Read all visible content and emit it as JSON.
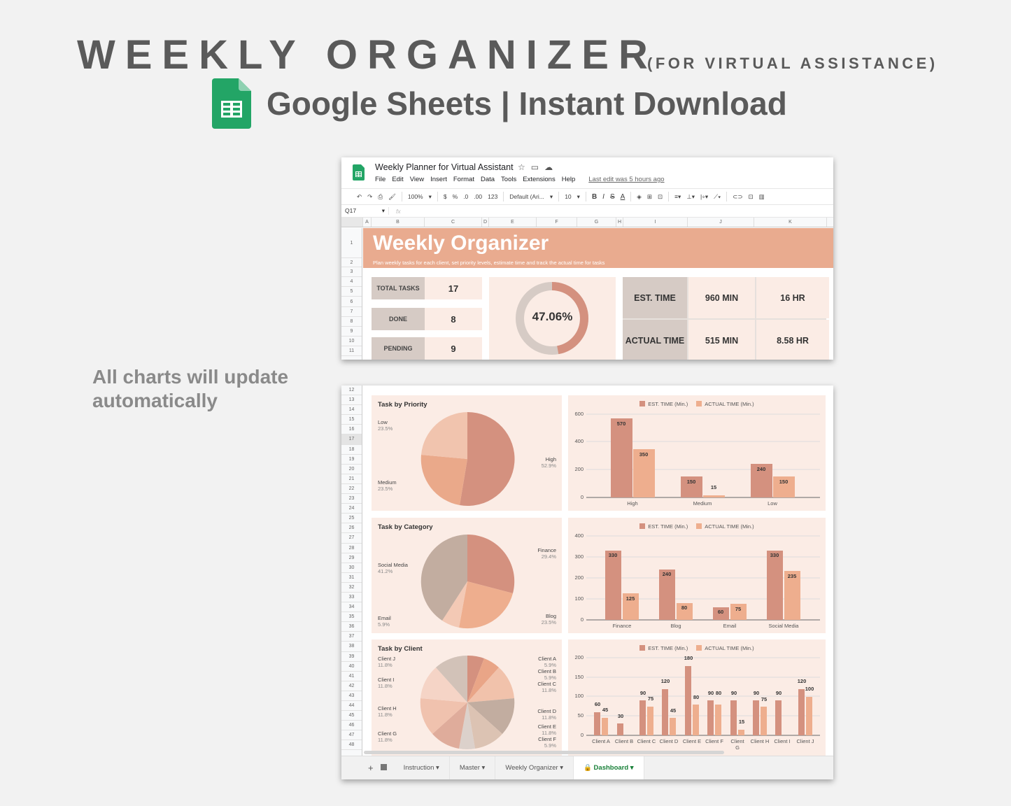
{
  "hero": {
    "title": "WEEKLY ORGANIZER",
    "subtitle": "(FOR VIRTUAL ASSISTANCE)",
    "line2": "Google Sheets | Instant Download",
    "side_note": "All charts will update automatically"
  },
  "window": {
    "doc_title": "Weekly Planner for Virtual Assistant",
    "menu": [
      "File",
      "Edit",
      "View",
      "Insert",
      "Format",
      "Data",
      "Tools",
      "Extensions",
      "Help"
    ],
    "last_edit": "Last edit was 5 hours ago",
    "toolbar": {
      "zoom": "100%",
      "currency": "$",
      "percent": "%",
      "dec_less": ".0",
      "dec_more": ".00",
      "format": "123",
      "font": "Default (Ari...",
      "font_size": "10",
      "bold": "B",
      "italic": "I",
      "strike": "S",
      "text_color": "A"
    },
    "name_box": "Q17",
    "fx": "fx",
    "columns": [
      "A",
      "B",
      "C",
      "D",
      "E",
      "F",
      "G",
      "H",
      "I",
      "J",
      "K"
    ]
  },
  "dashboard": {
    "title": "Weekly Organizer",
    "description": "Plan weekly tasks for each client, set priority levels, estimate time and track the actual time for tasks",
    "kpis": [
      {
        "label": "TOTAL TASKS",
        "value": "17"
      },
      {
        "label": "DONE",
        "value": "8"
      },
      {
        "label": "PENDING",
        "value": "9"
      }
    ],
    "completion": "47.06%",
    "time": {
      "est_label": "EST. TIME",
      "est_min": "960 MIN",
      "est_hr": "16 HR",
      "actual_label": "ACTUAL TIME",
      "actual_min": "515 MIN",
      "actual_hr": "8.58 HR"
    }
  },
  "legend": {
    "est": "EST. TIME (Min.)",
    "actual": "ACTUAL TIME (Min.)"
  },
  "colors": {
    "est": "#d4917f",
    "actual": "#eeae8e",
    "banner": "#e9ab8f",
    "card": "#fbece5",
    "label_bg": "#d6cbc5"
  },
  "chart_data": [
    {
      "type": "pie",
      "title": "Task by Priority",
      "categories": [
        "High",
        "Medium",
        "Low"
      ],
      "values": [
        52.9,
        23.5,
        23.5
      ],
      "labels": [
        "52.9%",
        "23.5%",
        "23.5%"
      ]
    },
    {
      "type": "bar",
      "title": "",
      "categories": [
        "High",
        "Medium",
        "Low"
      ],
      "series": [
        {
          "name": "EST. TIME (Min.)",
          "values": [
            570,
            150,
            240
          ]
        },
        {
          "name": "ACTUAL TIME (Min.)",
          "values": [
            350,
            15,
            150
          ]
        }
      ],
      "ylim": [
        0,
        600
      ],
      "yticks": [
        0,
        200,
        400,
        600
      ],
      "legend_position": "top"
    },
    {
      "type": "pie",
      "title": "Task by Category",
      "categories": [
        "Finance",
        "Blog",
        "Email",
        "Social Media"
      ],
      "values": [
        29.4,
        23.5,
        5.9,
        41.2
      ],
      "labels": [
        "29.4%",
        "23.5%",
        "5.9%",
        "41.2%"
      ]
    },
    {
      "type": "bar",
      "title": "",
      "categories": [
        "Finance",
        "Blog",
        "Email",
        "Social Media"
      ],
      "series": [
        {
          "name": "EST. TIME (Min.)",
          "values": [
            330,
            240,
            60,
            330
          ]
        },
        {
          "name": "ACTUAL TIME (Min.)",
          "values": [
            125,
            80,
            75,
            235
          ]
        }
      ],
      "ylim": [
        0,
        400
      ],
      "yticks": [
        0,
        100,
        200,
        300,
        400
      ],
      "legend_position": "top"
    },
    {
      "type": "pie",
      "title": "Task by Client",
      "categories": [
        "Client A",
        "Client B",
        "Client C",
        "Client D",
        "Client E",
        "Client F",
        "Client G",
        "Client H",
        "Client I",
        "Client J"
      ],
      "values": [
        5.9,
        5.9,
        11.8,
        11.8,
        11.8,
        5.9,
        11.8,
        11.8,
        11.8,
        11.8
      ],
      "labels": [
        "5.9%",
        "5.9%",
        "11.8%",
        "11.8%",
        "11.8%",
        "5.9%",
        "11.8%",
        "11.8%",
        "11.8%",
        "11.8%"
      ]
    },
    {
      "type": "bar",
      "title": "",
      "categories": [
        "Client A",
        "Client B",
        "Client C",
        "Client D",
        "Client E",
        "Client F",
        "Client G",
        "Client H",
        "Client I",
        "Client J"
      ],
      "series": [
        {
          "name": "EST. TIME (Min.)",
          "values": [
            60,
            30,
            90,
            120,
            180,
            90,
            90,
            90,
            90,
            120
          ]
        },
        {
          "name": "ACTUAL TIME (Min.)",
          "values": [
            45,
            0,
            75,
            45,
            80,
            80,
            15,
            75,
            0,
            100
          ]
        }
      ],
      "ylim": [
        0,
        200
      ],
      "yticks": [
        0,
        50,
        100,
        150,
        200
      ],
      "legend_position": "top"
    }
  ],
  "sheet_tabs": {
    "add": "+",
    "all": "≡",
    "tabs": [
      "Instruction",
      "Master",
      "Weekly Organizer",
      "Dashboard"
    ],
    "active": "Dashboard"
  }
}
